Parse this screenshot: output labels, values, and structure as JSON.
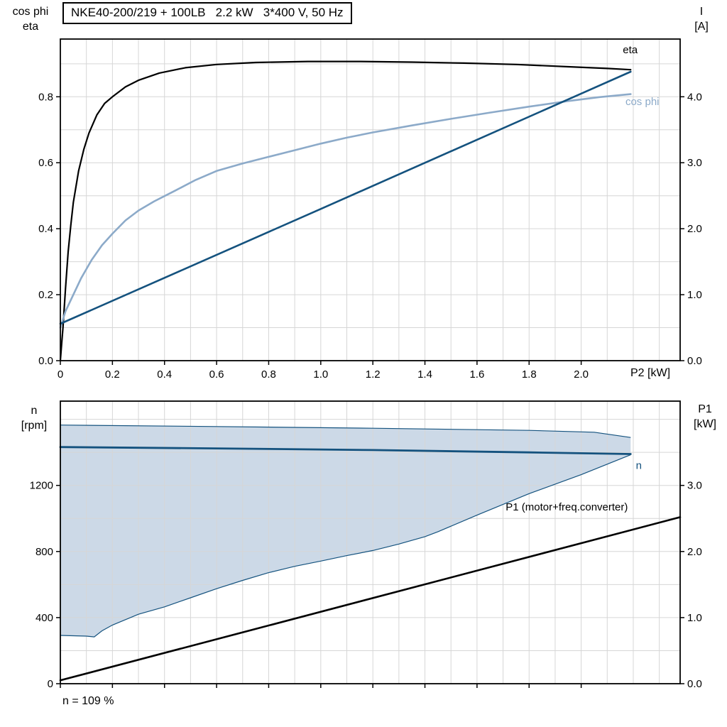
{
  "colors": {
    "black": "#000000",
    "dark_blue": "#14527e",
    "light_blue": "#8caac9",
    "band_fill": "#ccd9e7",
    "grid": "#d6d6d6",
    "axis": "#000000",
    "background": "#ffffff"
  },
  "chart_data": [
    {
      "id": "top-chart",
      "type": "line",
      "title": "NKE40-200/219 + 100LB   2.2 kW   3*400 V, 50 Hz",
      "x_axis": {
        "label": "P2 [kW]",
        "range": [
          0,
          2.38
        ],
        "grid_step": 0.1,
        "ticks": [
          {
            "v": 0,
            "t": "0"
          },
          {
            "v": 0.2,
            "t": "0.2"
          },
          {
            "v": 0.4,
            "t": "0.4"
          },
          {
            "v": 0.6,
            "t": "0.6"
          },
          {
            "v": 0.8,
            "t": "0.8"
          },
          {
            "v": 1.0,
            "t": "1.0"
          },
          {
            "v": 1.2,
            "t": "1.2"
          },
          {
            "v": 1.4,
            "t": "1.4"
          },
          {
            "v": 1.6,
            "t": "1.6"
          },
          {
            "v": 1.8,
            "t": "1.8"
          },
          {
            "v": 2.0,
            "t": "2.0"
          }
        ]
      },
      "left_axis": {
        "title": [
          "cos phi",
          "eta"
        ],
        "range": [
          0,
          0.975
        ],
        "grid_step": 0.1,
        "ticks": [
          {
            "v": 0,
            "t": "0.0"
          },
          {
            "v": 0.2,
            "t": "0.2"
          },
          {
            "v": 0.4,
            "t": "0.4"
          },
          {
            "v": 0.6,
            "t": "0.6"
          },
          {
            "v": 0.8,
            "t": "0.8"
          }
        ]
      },
      "right_axis": {
        "title": [
          "I",
          "[A]"
        ],
        "range": [
          0,
          4.875
        ],
        "ticks": [
          {
            "v": 0,
            "t": "0.0"
          },
          {
            "v": 1,
            "t": "1.0"
          },
          {
            "v": 2,
            "t": "2.0"
          },
          {
            "v": 3,
            "t": "3.0"
          },
          {
            "v": 4,
            "t": "4.0"
          }
        ]
      },
      "series": [
        {
          "name": "eta",
          "axis": "left",
          "color_key": "black",
          "width": 2.2,
          "label": {
            "t": "eta",
            "x": 2.16,
            "v": 0.932,
            "anchor": "start",
            "color_key": "black"
          },
          "points": [
            [
              0,
              0
            ],
            [
              0.005,
              0.05
            ],
            [
              0.01,
              0.1
            ],
            [
              0.02,
              0.22
            ],
            [
              0.03,
              0.33
            ],
            [
              0.04,
              0.41
            ],
            [
              0.05,
              0.48
            ],
            [
              0.07,
              0.575
            ],
            [
              0.09,
              0.64
            ],
            [
              0.11,
              0.69
            ],
            [
              0.14,
              0.745
            ],
            [
              0.17,
              0.78
            ],
            [
              0.2,
              0.8
            ],
            [
              0.25,
              0.83
            ],
            [
              0.3,
              0.85
            ],
            [
              0.38,
              0.872
            ],
            [
              0.48,
              0.888
            ],
            [
              0.6,
              0.898
            ],
            [
              0.75,
              0.904
            ],
            [
              0.95,
              0.907
            ],
            [
              1.15,
              0.907
            ],
            [
              1.35,
              0.905
            ],
            [
              1.55,
              0.902
            ],
            [
              1.75,
              0.898
            ],
            [
              1.95,
              0.891
            ],
            [
              2.1,
              0.886
            ],
            [
              2.19,
              0.882
            ]
          ]
        },
        {
          "name": "cos_phi",
          "axis": "left",
          "color_key": "light_blue",
          "width": 2.6,
          "label": {
            "t": "cos phi",
            "x": 2.17,
            "v": 0.775,
            "anchor": "start",
            "color_key": "light_blue"
          },
          "points": [
            [
              0,
              0.1
            ],
            [
              0.02,
              0.15
            ],
            [
              0.05,
              0.2
            ],
            [
              0.08,
              0.25
            ],
            [
              0.12,
              0.305
            ],
            [
              0.16,
              0.35
            ],
            [
              0.2,
              0.385
            ],
            [
              0.25,
              0.425
            ],
            [
              0.3,
              0.455
            ],
            [
              0.36,
              0.483
            ],
            [
              0.44,
              0.515
            ],
            [
              0.52,
              0.548
            ],
            [
              0.6,
              0.575
            ],
            [
              0.7,
              0.598
            ],
            [
              0.8,
              0.618
            ],
            [
              0.9,
              0.638
            ],
            [
              1.0,
              0.658
            ],
            [
              1.1,
              0.676
            ],
            [
              1.2,
              0.692
            ],
            [
              1.35,
              0.713
            ],
            [
              1.5,
              0.733
            ],
            [
              1.65,
              0.752
            ],
            [
              1.8,
              0.77
            ],
            [
              1.95,
              0.787
            ],
            [
              2.07,
              0.799
            ],
            [
              2.19,
              0.808
            ]
          ]
        },
        {
          "name": "I",
          "axis": "right",
          "color_key": "dark_blue",
          "width": 2.6,
          "points": [
            [
              0,
              0.56
            ],
            [
              1.0,
              2.3
            ],
            [
              2.19,
              4.38
            ]
          ]
        }
      ]
    },
    {
      "id": "bottom-chart",
      "type": "line",
      "footnote": "n = 109 %",
      "x_axis": {
        "label": "",
        "range": [
          0,
          2.38
        ],
        "grid_step": 0.1,
        "ticks": [
          {
            "v": 0,
            "t": ""
          },
          {
            "v": 0.2,
            "t": ""
          },
          {
            "v": 0.4,
            "t": ""
          },
          {
            "v": 0.6,
            "t": ""
          },
          {
            "v": 0.8,
            "t": ""
          },
          {
            "v": 1.0,
            "t": ""
          },
          {
            "v": 1.2,
            "t": ""
          },
          {
            "v": 1.4,
            "t": ""
          },
          {
            "v": 1.6,
            "t": ""
          },
          {
            "v": 1.8,
            "t": ""
          },
          {
            "v": 2.0,
            "t": ""
          }
        ]
      },
      "left_axis": {
        "title": [
          "n",
          "[rpm]"
        ],
        "range": [
          0,
          1710
        ],
        "grid_step": 200,
        "ticks": [
          {
            "v": 0,
            "t": "0"
          },
          {
            "v": 400,
            "t": "400"
          },
          {
            "v": 800,
            "t": "800"
          },
          {
            "v": 1200,
            "t": "1200"
          }
        ]
      },
      "right_axis": {
        "title": [
          "P1",
          "[kW]"
        ],
        "range": [
          0,
          4.275
        ],
        "ticks": [
          {
            "v": 0,
            "t": "0.0"
          },
          {
            "v": 1,
            "t": "1.0"
          },
          {
            "v": 2,
            "t": "2.0"
          },
          {
            "v": 3,
            "t": "3.0"
          }
        ]
      },
      "band": {
        "name": "speed-control-range",
        "axis": "left",
        "fill_key": "band_fill",
        "stroke_key": "dark_blue",
        "stroke_width": 1.2,
        "upper": [
          [
            0,
            1565
          ],
          [
            0.6,
            1556
          ],
          [
            1.2,
            1546
          ],
          [
            1.8,
            1533
          ],
          [
            2.05,
            1522
          ],
          [
            2.19,
            1490
          ]
        ],
        "lower": [
          [
            0,
            292
          ],
          [
            0.1,
            288
          ],
          [
            0.13,
            283
          ],
          [
            0.16,
            320
          ],
          [
            0.2,
            355
          ],
          [
            0.3,
            420
          ],
          [
            0.4,
            465
          ],
          [
            0.5,
            520
          ],
          [
            0.6,
            575
          ],
          [
            0.7,
            625
          ],
          [
            0.8,
            672
          ],
          [
            0.9,
            710
          ],
          [
            1.0,
            742
          ],
          [
            1.1,
            775
          ],
          [
            1.2,
            806
          ],
          [
            1.3,
            845
          ],
          [
            1.4,
            890
          ],
          [
            1.45,
            920
          ],
          [
            1.6,
            1020
          ],
          [
            1.8,
            1150
          ],
          [
            2.0,
            1265
          ],
          [
            2.19,
            1385
          ]
        ]
      },
      "series": [
        {
          "name": "n",
          "axis": "left",
          "color_key": "dark_blue",
          "width": 2.8,
          "label": {
            "t": "n",
            "x": 2.21,
            "v": 1300,
            "anchor": "start",
            "color_key": "dark_blue"
          },
          "points": [
            [
              0,
              1432
            ],
            [
              0.6,
              1424
            ],
            [
              1.2,
              1414
            ],
            [
              1.8,
              1400
            ],
            [
              2.19,
              1390
            ]
          ]
        },
        {
          "name": "P1",
          "axis": "right",
          "color_key": "black",
          "width": 2.6,
          "label": {
            "t": "P1 (motor+freq.converter)",
            "x": 1.71,
            "v": 2.62,
            "anchor": "start",
            "color_key": "black"
          },
          "points": [
            [
              0,
              0.05
            ],
            [
              2.38,
              2.52
            ]
          ]
        }
      ]
    }
  ]
}
